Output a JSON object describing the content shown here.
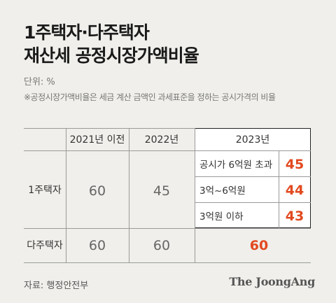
{
  "title_line1": "1주택자·다주택자",
  "title_line2": "재산세 공정시장가액비율",
  "unit": "단위: %",
  "note": "※공정시장가액비율은 세금 계산 금액인 과세표준을 정하는 공시가격의 비율",
  "source": "자료: 행정안전부",
  "logo": "The JoongAng",
  "colors": {
    "background": "#f0efeb",
    "accent": "#e2491f",
    "box": "#ffffff"
  },
  "chart_data": {
    "type": "table",
    "columns": [
      "2021년 이전",
      "2022년",
      "2023년"
    ],
    "sub_columns_2023": [
      "공시가 6억원 초과",
      "3억~6억원",
      "3억원 이하"
    ],
    "rows": [
      {
        "label": "1주택자",
        "v2021": "60",
        "v2022": "45",
        "v2023": [
          {
            "bracket": "공시가 6억원 초과",
            "value": "45"
          },
          {
            "bracket": "3억~6억원",
            "value": "44"
          },
          {
            "bracket": "3억원 이하",
            "value": "43"
          }
        ]
      },
      {
        "label": "다주택자",
        "v2021": "60",
        "v2022": "60",
        "v2023": "60"
      }
    ]
  }
}
